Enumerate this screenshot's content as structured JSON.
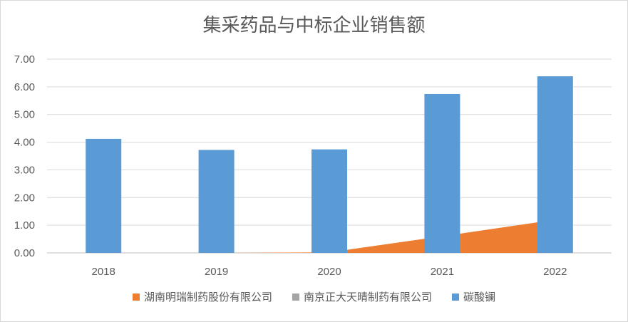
{
  "chart_data": {
    "type": "bar",
    "title": "集采药品与中标企业销售额",
    "categories": [
      "2018",
      "2019",
      "2020",
      "2021",
      "2022"
    ],
    "ylim": [
      0,
      7
    ],
    "yticks": [
      "0.00",
      "1.00",
      "2.00",
      "3.00",
      "4.00",
      "5.00",
      "6.00",
      "7.00"
    ],
    "grid": true,
    "legend_position": "bottom",
    "series": [
      {
        "name": "湖南明瑞制药股份有限公司",
        "type": "area",
        "color": "#ED7D31",
        "values": [
          0,
          0,
          0.02,
          0.6,
          1.2
        ]
      },
      {
        "name": "南京正大天晴制药有限公司",
        "type": "area",
        "color": "#A5A5A5",
        "values": [
          0,
          0,
          0,
          0,
          0
        ]
      },
      {
        "name": "碳酸镧",
        "type": "bar",
        "color": "#5B9BD5",
        "values": [
          4.12,
          3.72,
          3.74,
          5.74,
          6.38
        ]
      }
    ]
  }
}
